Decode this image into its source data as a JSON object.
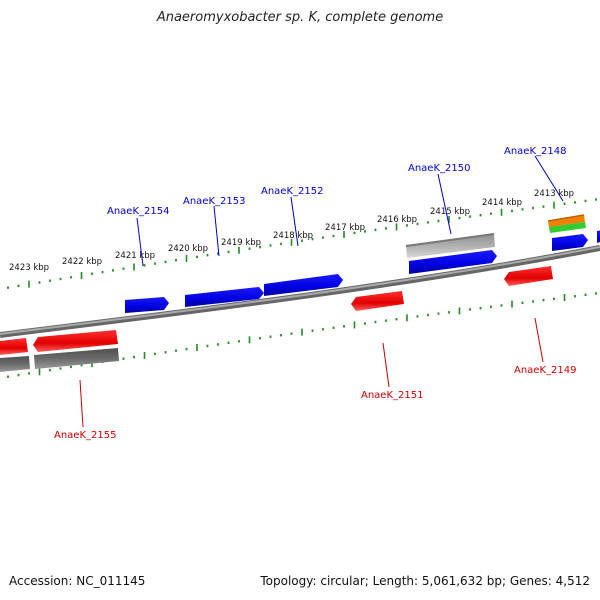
{
  "title": "Anaeromyxobacter sp. K, complete genome",
  "footer": {
    "accession": "Accession: NC_011145",
    "stats": "Topology: circular; Length: 5,061,632 bp; Genes: 4,512"
  },
  "colors": {
    "forward_gene": "#0000ee",
    "reverse_gene": "#ee0000",
    "tick": "#228b22",
    "backbone": "#808080"
  },
  "kbp_labels": [
    "2423 kbp",
    "2422 kbp",
    "2421 kbp",
    "2420 kbp",
    "2419 kbp",
    "2418 kbp",
    "2417 kbp",
    "2416 kbp",
    "2415 kbp",
    "2414 kbp",
    "2413 kbp"
  ],
  "gene_labels": {
    "g2154": "AnaeK_2154",
    "g2153": "AnaeK_2153",
    "g2152": "AnaeK_2152",
    "g2150": "AnaeK_2150",
    "g2148": "AnaeK_2148",
    "g2155": "AnaeK_2155",
    "g2151": "AnaeK_2151",
    "g2149": "AnaeK_2149"
  }
}
